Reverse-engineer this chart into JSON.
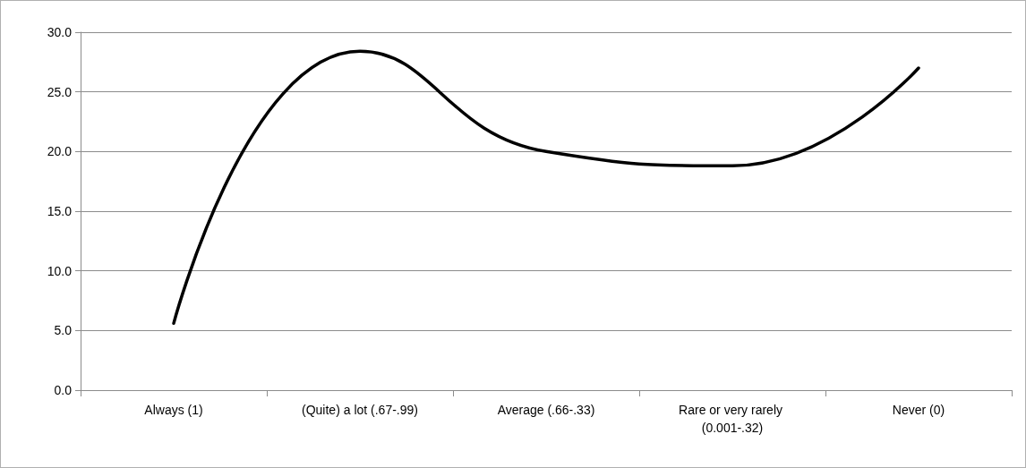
{
  "chart_data": {
    "type": "line",
    "categories": [
      "Always (1)",
      "(Quite) a lot (.67-.99)",
      "Average (.66-.33)",
      "Rare or very rarely (0.001-.32)",
      "Never (0)"
    ],
    "series": [
      {
        "color": "#000000",
        "values": [
          5.6,
          28.4,
          20.0,
          18.8,
          27.0
        ]
      }
    ],
    "ylim": [
      0,
      30
    ],
    "yticks": [
      {
        "value": 0,
        "label": "0.0"
      },
      {
        "value": 5,
        "label": "5.0"
      },
      {
        "value": 10,
        "label": "10.0"
      },
      {
        "value": 15,
        "label": "15.0"
      },
      {
        "value": 20,
        "label": "20.0"
      },
      {
        "value": 25,
        "label": "25.0"
      },
      {
        "value": 30,
        "label": "30.0"
      }
    ],
    "grid": "y",
    "marker": "none",
    "line_style": "solid"
  }
}
